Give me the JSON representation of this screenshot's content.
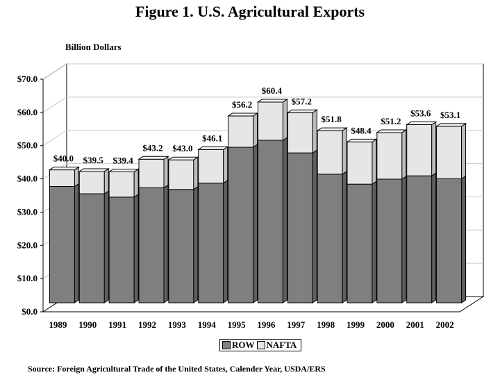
{
  "chart_data": {
    "type": "bar",
    "stacked": true,
    "three_d": true,
    "title": "Figure 1. U.S. Agricultural Exports",
    "ylabel": "Billion Dollars",
    "xlabel": "",
    "categories": [
      "1989",
      "1990",
      "1991",
      "1992",
      "1993",
      "1994",
      "1995",
      "1996",
      "1997",
      "1998",
      "1999",
      "2000",
      "2001",
      "2002"
    ],
    "series": [
      {
        "name": "ROW",
        "color": "#7f7f7f",
        "values": [
          35.0,
          32.8,
          31.8,
          34.6,
          34.1,
          36.0,
          46.8,
          48.9,
          45.1,
          38.7,
          35.7,
          37.2,
          38.2,
          37.3
        ]
      },
      {
        "name": "NAFTA",
        "color": "#e6e6e6",
        "values": [
          5.0,
          6.7,
          7.6,
          8.6,
          8.9,
          10.1,
          9.4,
          11.5,
          12.1,
          13.1,
          12.7,
          14.0,
          15.4,
          15.8
        ]
      }
    ],
    "total_labels": [
      "$40.0",
      "$39.5",
      "$39.4",
      "$43.2",
      "$43.0",
      "$46.1",
      "$56.2",
      "$60.4",
      "$57.2",
      "$51.8",
      "$48.4",
      "$51.2",
      "$53.6",
      "$53.1"
    ],
    "yticks": [
      0,
      10,
      20,
      30,
      40,
      50,
      60,
      70
    ],
    "ytick_labels": [
      "$0.0",
      "$10.0",
      "$20.0",
      "$30.0",
      "$40.0",
      "$50.0",
      "$60.0",
      "$70.0"
    ],
    "ylim": [
      0,
      70
    ],
    "grid": true,
    "legend_position": "bottom-center"
  },
  "source": "Source:  Foreign Agricultural Trade of the United States, Calender Year, USDA/ERS"
}
